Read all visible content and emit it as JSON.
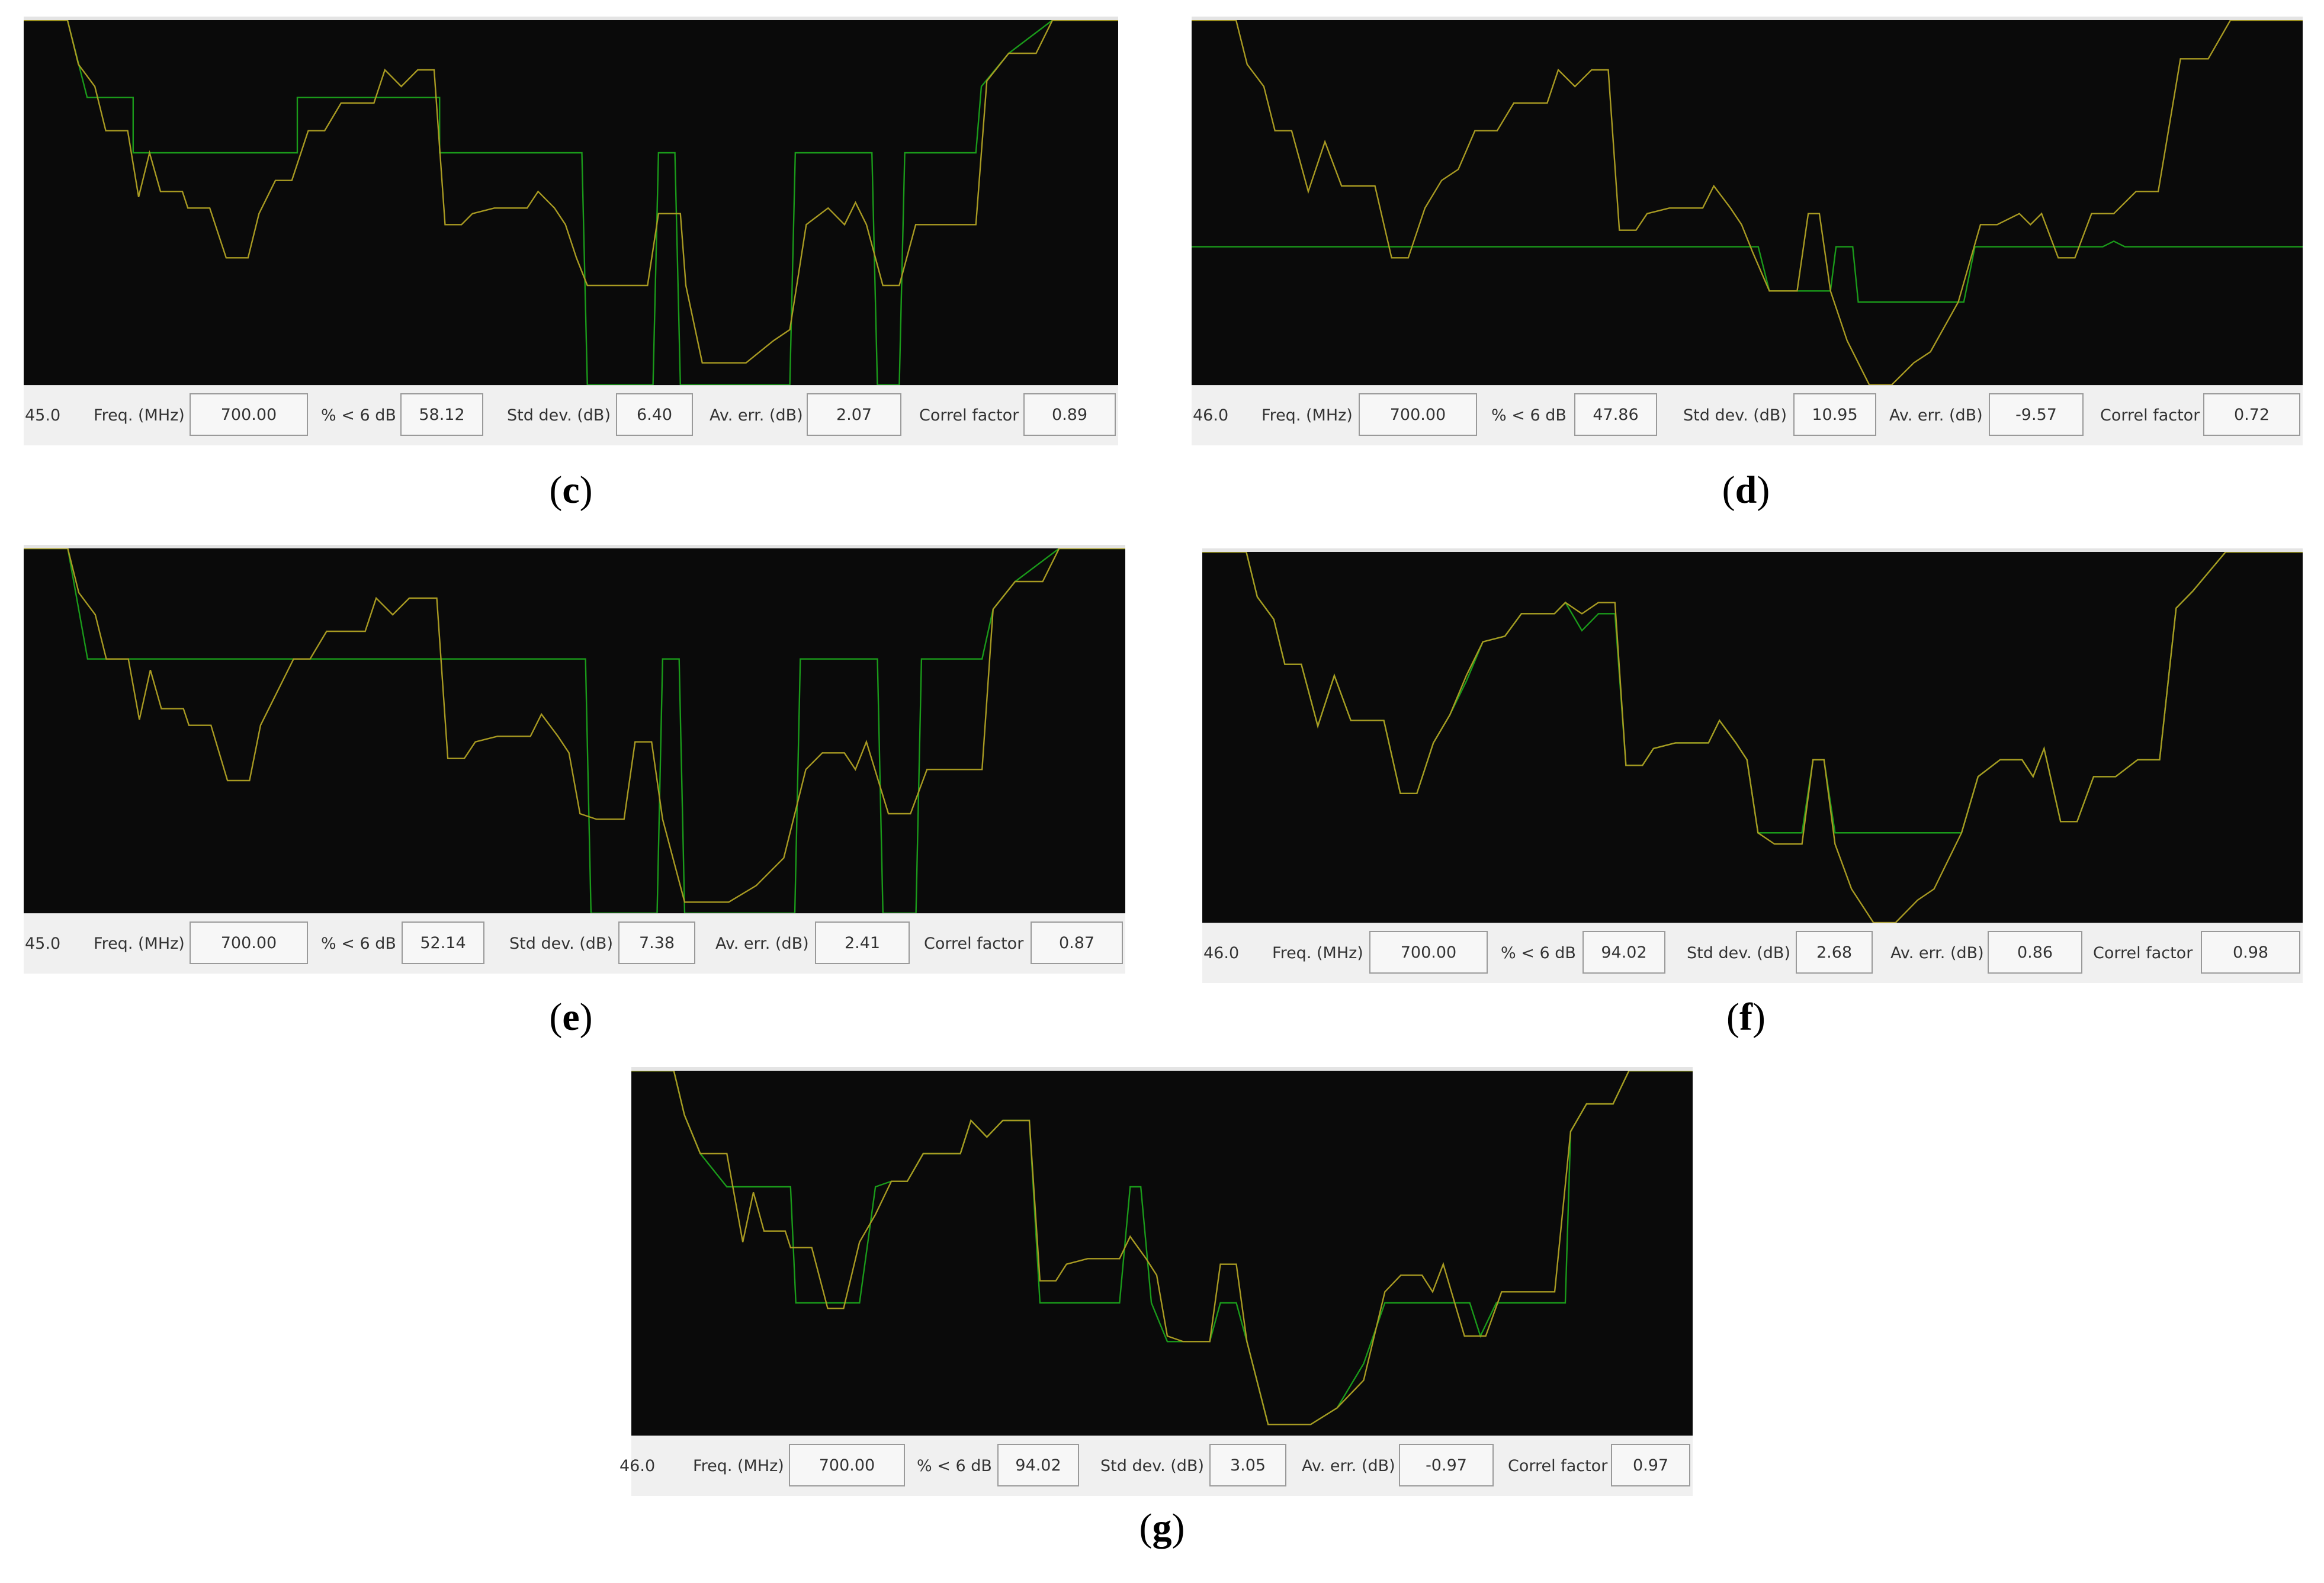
{
  "panels": [
    {
      "id": "c",
      "caption": "c",
      "scale_value": "45.0",
      "freq_label": "Freq. (MHz)",
      "freq_value": "700.00",
      "pct_label": "% < 6 dB",
      "pct_value": "58.12",
      "std_label": "Std dev. (dB)",
      "std_value": "6.40",
      "err_label": "Av. err. (dB)",
      "err_value": "2.07",
      "corr_label": "Correl factor",
      "corr_value": "0.89"
    },
    {
      "id": "d",
      "caption": "d",
      "scale_value": "46.0",
      "freq_label": "Freq. (MHz)",
      "freq_value": "700.00",
      "pct_label": "% < 6 dB",
      "pct_value": "47.86",
      "std_label": "Std dev. (dB)",
      "std_value": "10.95",
      "err_label": "Av. err. (dB)",
      "err_value": "-9.57",
      "corr_label": "Correl factor",
      "corr_value": "0.72"
    },
    {
      "id": "e",
      "caption": "e",
      "scale_value": "45.0",
      "freq_label": "Freq. (MHz)",
      "freq_value": "700.00",
      "pct_label": "% < 6 dB",
      "pct_value": "52.14",
      "std_label": "Std dev. (dB)",
      "std_value": "7.38",
      "err_label": "Av. err. (dB)",
      "err_value": "2.41",
      "corr_label": "Correl factor",
      "corr_value": "0.87"
    },
    {
      "id": "f",
      "caption": "f",
      "scale_value": "46.0",
      "freq_label": "Freq. (MHz)",
      "freq_value": "700.00",
      "pct_label": "% < 6 dB",
      "pct_value": "94.02",
      "std_label": "Std dev. (dB)",
      "std_value": "2.68",
      "err_label": "Av. err. (dB)",
      "err_value": "0.86",
      "corr_label": "Correl factor",
      "corr_value": "0.98"
    },
    {
      "id": "g",
      "caption": "g",
      "scale_value": "46.0",
      "freq_label": "Freq. (MHz)",
      "freq_value": "700.00",
      "pct_label": "% < 6 dB",
      "pct_value": "94.02",
      "std_label": "Std dev. (dB)",
      "std_value": "3.05",
      "err_label": "Av. err. (dB)",
      "err_value": "-0.97",
      "corr_label": "Correl factor",
      "corr_value": "0.97"
    }
  ],
  "colors": {
    "plot_background": "#0a0a0a",
    "measured_trace": "#a89a22",
    "predicted_trace": "#1a9a1a",
    "status_background": "#f0f0f0"
  }
}
